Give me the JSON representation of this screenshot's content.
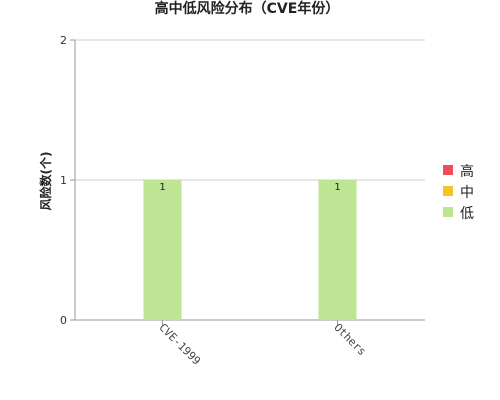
{
  "chart_data": {
    "type": "bar",
    "title": "高中低风险分布（CVE年份）",
    "xlabel": "",
    "ylabel": "风险数(个)",
    "ylim": [
      0,
      2
    ],
    "yticks": [
      0,
      1,
      2
    ],
    "categories": [
      "CVE-1999",
      "Others"
    ],
    "series": [
      {
        "name": "高",
        "color": "#ee4c5a",
        "values": [
          0,
          0
        ]
      },
      {
        "name": "中",
        "color": "#f3c623",
        "values": [
          0,
          0
        ]
      },
      {
        "name": "低",
        "color": "#bde594",
        "values": [
          1,
          1
        ]
      }
    ],
    "data_labels": [
      "1",
      "1"
    ],
    "legend_position": "right",
    "grid": true
  }
}
